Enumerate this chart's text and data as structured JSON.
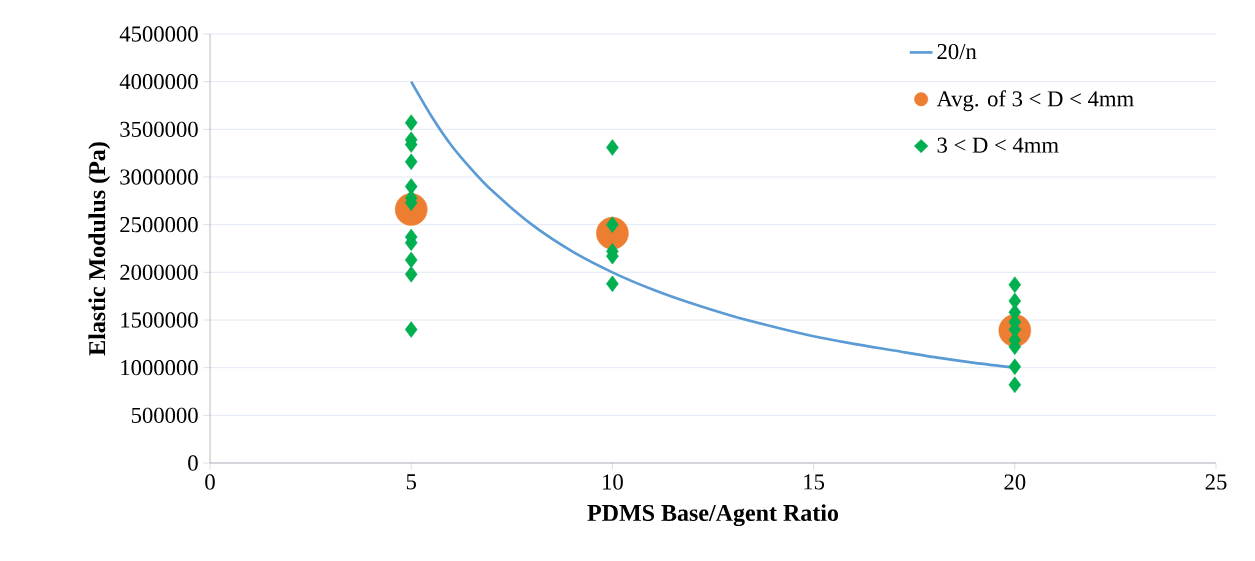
{
  "chart_data": {
    "type": "scatter",
    "xlabel": "PDMS Base/Agent Ratio",
    "ylabel": "Elastic Modulus (Pa)",
    "xlim": [
      0,
      25
    ],
    "xticks": [
      0,
      5,
      10,
      15,
      20,
      25
    ],
    "ylim": [
      0,
      4500000
    ],
    "yticks": [
      0,
      500000,
      1000000,
      1500000,
      2000000,
      2500000,
      3000000,
      3500000,
      4000000,
      4500000
    ],
    "grid": "y",
    "legend": "top right",
    "series": [
      {
        "name": "20/n",
        "type": "line",
        "marker": "none",
        "color": "#5b9bd5",
        "x": [
          5,
          5.5,
          6,
          6.5,
          7,
          8,
          9,
          10,
          11,
          12,
          13,
          14,
          15,
          16,
          17,
          18,
          19,
          20
        ],
        "values": [
          4000000,
          3640000,
          3330000,
          3080000,
          2860000,
          2500000,
          2220000,
          2000000,
          1820000,
          1670000,
          1540000,
          1430000,
          1330000,
          1250000,
          1180000,
          1110000,
          1050000,
          1000000
        ]
      },
      {
        "name": "Avg. of  3 < D < 4mm",
        "marker": "circle",
        "color": "#ed7d31",
        "x": [
          5,
          10,
          20
        ],
        "values": [
          2660000,
          2410000,
          1390000
        ]
      },
      {
        "name": "3 < D < 4mm",
        "marker": "diamond",
        "color": "#00b050",
        "x": [
          5,
          5,
          5,
          5,
          5,
          5,
          5,
          5,
          5,
          5,
          5,
          5,
          10,
          10,
          10,
          10,
          10,
          20,
          20,
          20,
          20,
          20,
          20,
          20,
          20,
          20
        ],
        "values": [
          3570000,
          3390000,
          3340000,
          3160000,
          2900000,
          2780000,
          2730000,
          2370000,
          2310000,
          2130000,
          1980000,
          1400000,
          3310000,
          2500000,
          2220000,
          2170000,
          1880000,
          1870000,
          1700000,
          1580000,
          1480000,
          1400000,
          1290000,
          1220000,
          1010000,
          820000
        ]
      }
    ]
  }
}
